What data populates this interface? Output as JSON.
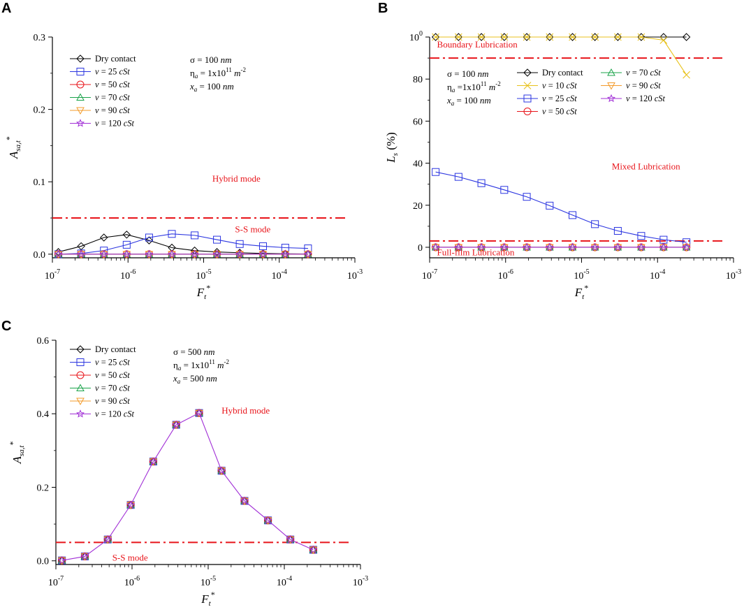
{
  "colors": {
    "dry": "#000000",
    "v10": "#e8c21c",
    "v25": "#2b35e0",
    "v50": "#e8141a",
    "v70": "#1aa34a",
    "v90": "#f39b2b",
    "v120": "#a12fd6",
    "threshold": "#e8141a",
    "pinkC": "#e0a0c8"
  },
  "legend_labels": {
    "dry": "Dry contact",
    "v10": "v = 10 cSt",
    "v25": "v = 25 cSt",
    "v50": "v = 50 cSt",
    "v70": "v = 70 cSt",
    "v90": "v = 90 cSt",
    "v120": "v = 120 cSt"
  },
  "chart_data": [
    {
      "panel": "A",
      "type": "line",
      "xscale": "log",
      "xlim": [
        1e-07,
        0.001
      ],
      "ylim": [
        -0.005,
        0.3
      ],
      "yticks": [
        "0.0",
        "0.1",
        "0.2",
        "0.3"
      ],
      "xticks": [
        "10-7",
        "10-6",
        "10-5",
        "10-4",
        "10-3"
      ],
      "xlabel": "Ft*",
      "ylabel": "Asa,t*",
      "params": [
        "σ = 100 nm",
        "ηa = 1x1011 m-2",
        "xa = 100 nm"
      ],
      "x": [
        1.2e-07,
        2.4e-07,
        4.8e-07,
        9.6e-07,
        1.9e-06,
        3.8e-06,
        7.6e-06,
        1.5e-05,
        3e-05,
        6.1e-05,
        0.00012,
        0.00024
      ],
      "series": [
        {
          "key": "dry",
          "marker": "diamond",
          "values": [
            0.003,
            0.011,
            0.023,
            0.027,
            0.019,
            0.009,
            0.005,
            0.003,
            0.002,
            0.001,
            0.0005,
            0.0003
          ]
        },
        {
          "key": "v25",
          "marker": "square",
          "values": [
            0.0,
            0.001,
            0.005,
            0.013,
            0.023,
            0.028,
            0.026,
            0.02,
            0.014,
            0.011,
            0.009,
            0.008
          ]
        },
        {
          "key": "v50",
          "marker": "circle",
          "values": [
            0,
            0,
            0,
            0,
            0,
            0,
            0,
            0,
            0,
            0,
            0,
            0
          ]
        },
        {
          "key": "v70",
          "marker": "triangle-up",
          "values": [
            0,
            0,
            0,
            0,
            0,
            0,
            0,
            0,
            0,
            0,
            0,
            0
          ]
        },
        {
          "key": "v90",
          "marker": "triangle-down",
          "values": [
            0,
            0,
            0,
            0,
            0,
            0,
            0,
            0,
            0,
            0,
            0,
            0
          ]
        },
        {
          "key": "v120",
          "marker": "star",
          "values": [
            0,
            0,
            0,
            0,
            0,
            0,
            0,
            0,
            0,
            0,
            0,
            0
          ]
        }
      ],
      "legend": [
        "dry",
        "v25",
        "v50",
        "v70",
        "v90",
        "v120"
      ],
      "thresholds": [
        0.05
      ],
      "annotations": [
        {
          "text": "Hybrid mode",
          "x": 1.3e-05,
          "y": 0.1
        },
        {
          "text": "S-S mode",
          "x": 2.6e-05,
          "y": 0.03
        }
      ]
    },
    {
      "panel": "B",
      "type": "line",
      "xscale": "log",
      "xlim": [
        1e-07,
        0.001
      ],
      "ylim": [
        -5,
        100
      ],
      "yticks": [
        "0",
        "20",
        "40",
        "60",
        "80",
        "100"
      ],
      "xticks": [
        "10-7",
        "10-6",
        "10-5",
        "10-4",
        "10-3"
      ],
      "xlabel": "Ft*",
      "ylabel": "Ls (%)",
      "params": [
        "σ = 100 nm",
        "ηa =1x1011 m-2",
        "xa = 100 nm"
      ],
      "x": [
        1.2e-07,
        2.4e-07,
        4.8e-07,
        9.6e-07,
        1.9e-06,
        3.8e-06,
        7.6e-06,
        1.5e-05,
        3e-05,
        6.1e-05,
        0.00012,
        0.00024
      ],
      "series": [
        {
          "key": "dry",
          "marker": "diamond",
          "values": [
            100,
            100,
            100,
            100,
            100,
            100,
            100,
            100,
            100,
            100,
            100,
            100
          ]
        },
        {
          "key": "v10",
          "marker": "x",
          "values": [
            100,
            100,
            100,
            100,
            100,
            100,
            100,
            100,
            100,
            100,
            98.5,
            82
          ]
        },
        {
          "key": "v25",
          "marker": "square",
          "values": [
            35.8,
            33.5,
            30.5,
            27.3,
            24,
            19.8,
            15.3,
            11,
            7.8,
            5.4,
            3.6,
            2.4
          ]
        },
        {
          "key": "v50",
          "marker": "circle",
          "values": [
            0,
            0,
            0,
            0,
            0,
            0,
            0,
            0,
            0,
            0,
            0,
            0
          ]
        },
        {
          "key": "v70",
          "marker": "triangle-up",
          "values": [
            0,
            0,
            0,
            0,
            0,
            0,
            0,
            0,
            0,
            0,
            0,
            0
          ]
        },
        {
          "key": "v90",
          "marker": "triangle-down",
          "values": [
            0,
            0,
            0,
            0,
            0,
            0,
            0,
            0,
            0,
            0,
            0,
            0
          ]
        },
        {
          "key": "v120",
          "marker": "star",
          "values": [
            0,
            0,
            0,
            0,
            0,
            0,
            0,
            0,
            0,
            0,
            0,
            0
          ]
        }
      ],
      "legend": [
        "dry",
        "v10",
        "v25",
        "v50",
        "v70",
        "v90",
        "v120"
      ],
      "thresholds": [
        90,
        3
      ],
      "annotations": [
        {
          "text": "Boundary Lubrication",
          "x": 1.25e-07,
          "y": 95
        },
        {
          "text": "Mixed Lubrication",
          "x": 2.5e-05,
          "y": 37
        },
        {
          "text": "Full-film Lubrication",
          "x": 1.25e-07,
          "y": -3.8
        }
      ]
    },
    {
      "panel": "C",
      "type": "line",
      "xscale": "log",
      "xlim": [
        1e-07,
        0.001
      ],
      "ylim": [
        -0.01,
        0.6
      ],
      "yticks": [
        "0.0",
        "0.2",
        "0.4",
        "0.6"
      ],
      "xticks": [
        "10-7",
        "10-6",
        "10-5",
        "10-4",
        "10-3"
      ],
      "xlabel": "Ft*",
      "ylabel": "Asa,t*",
      "params": [
        "σ = 500 nm",
        "ηa = 1x1011 m-2",
        "xa = 500 nm"
      ],
      "x": [
        1.2e-07,
        2.4e-07,
        4.8e-07,
        9.6e-07,
        1.9e-06,
        3.8e-06,
        7.6e-06,
        1.5e-05,
        3e-05,
        6.1e-05,
        0.00012,
        0.00024
      ],
      "series": [
        {
          "key": "dry",
          "marker": "diamond",
          "values": [
            0.001,
            0.012,
            0.058,
            0.152,
            0.27,
            0.37,
            0.402,
            0.245,
            0.163,
            0.11,
            0.058,
            0.03
          ]
        },
        {
          "key": "v25",
          "marker": "square",
          "values": [
            0.001,
            0.012,
            0.058,
            0.152,
            0.27,
            0.37,
            0.402,
            0.245,
            0.163,
            0.11,
            0.058,
            0.03
          ]
        },
        {
          "key": "v50",
          "marker": "circle",
          "values": [
            0.001,
            0.012,
            0.058,
            0.152,
            0.27,
            0.37,
            0.402,
            0.245,
            0.163,
            0.11,
            0.058,
            0.03
          ]
        },
        {
          "key": "v70",
          "marker": "triangle-up",
          "values": [
            0.001,
            0.012,
            0.058,
            0.152,
            0.27,
            0.37,
            0.402,
            0.245,
            0.163,
            0.11,
            0.058,
            0.03
          ]
        },
        {
          "key": "v90",
          "marker": "triangle-down",
          "values": [
            0.001,
            0.012,
            0.058,
            0.152,
            0.27,
            0.37,
            0.402,
            0.245,
            0.163,
            0.11,
            0.058,
            0.03
          ]
        },
        {
          "key": "v120",
          "marker": "star",
          "values": [
            0.001,
            0.012,
            0.058,
            0.152,
            0.27,
            0.37,
            0.402,
            0.245,
            0.163,
            0.11,
            0.058,
            0.03
          ]
        }
      ],
      "legend": [
        "dry",
        "v25",
        "v50",
        "v70",
        "v90",
        "v120"
      ],
      "thresholds": [
        0.05
      ],
      "annotations": [
        {
          "text": "Hybrid mode",
          "x": 1.5e-05,
          "y": 0.4
        },
        {
          "text": "S-S mode",
          "x": 5.5e-07,
          "y": 0.0
        }
      ]
    }
  ]
}
